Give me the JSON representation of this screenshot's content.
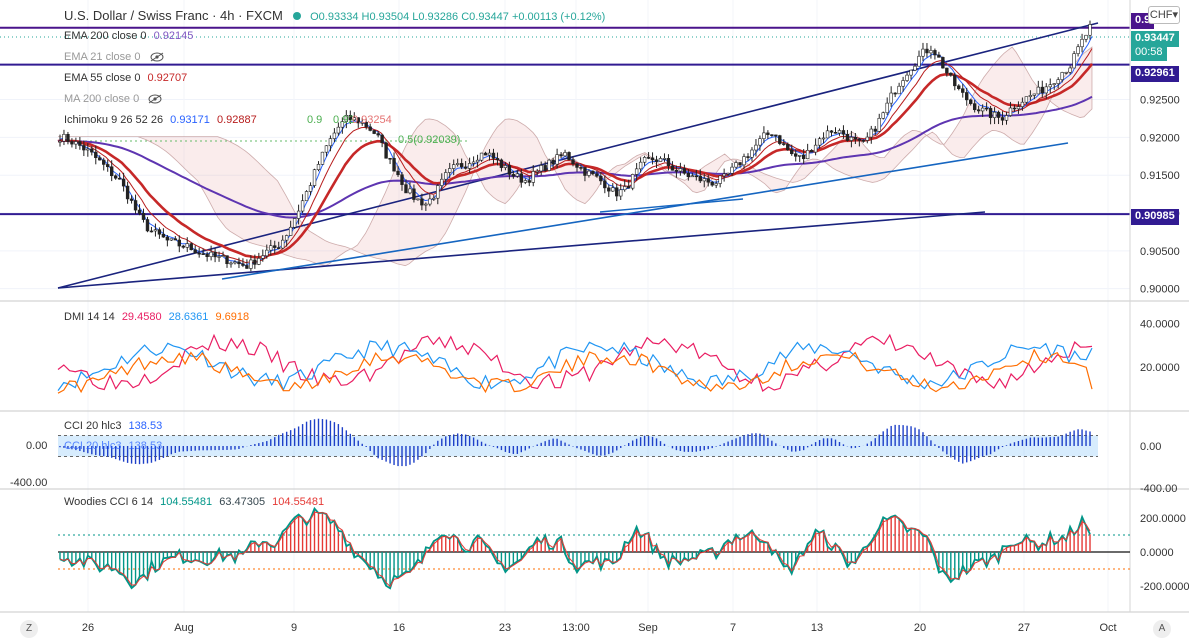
{
  "header": {
    "symbol": "U.S. Dollar / Swiss Franc · 4h · FXCM",
    "ohlc": "O0.93334 H0.93504 L0.93286 C0.93447 +0.00113 (+0.12%)",
    "ohlc_color": "#26a69a",
    "currency_button": "CHF",
    "currency_caret": "▾"
  },
  "indicators": [
    {
      "name": "EMA 200 close 0",
      "value": "0.92145",
      "color": "#7e57c2",
      "hidden": false
    },
    {
      "name": "EMA 21 close 0",
      "value": "",
      "color": "#999999",
      "hidden": true
    },
    {
      "name": "EMA 55 close 0",
      "value": "0.92707",
      "color": "#c62828",
      "hidden": false
    },
    {
      "name": "MA 200 close 0",
      "value": "",
      "color": "#999999",
      "hidden": true
    }
  ],
  "ichimoku": {
    "name": "Ichimoku 9 26 52 26",
    "v1": "0.93171",
    "v2": "0.92887",
    "c1": "#2962ff",
    "c2": "#b71c1c"
  },
  "fib_labels": {
    "a": "0.5(0.92039)",
    "b": "0.9",
    "c": "0.92",
    "d": "0.93254"
  },
  "price_axis": {
    "ticks": [
      "0.92500",
      "0.92000",
      "0.91500",
      "0.91000",
      "0.90500",
      "0.90000"
    ],
    "tag_top": "0.9",
    "tag_last": "0.93447",
    "countdown": "00:58",
    "tag_res": "0.92961",
    "tag_sup": "0.90985"
  },
  "dmi": {
    "name": "DMI 14 14",
    "plus": "29.4580",
    "minus": "28.6361",
    "adx": "9.6918",
    "c_plus": "#e91e63",
    "c_minus": "#2196f3",
    "c_adx": "#ff6d00",
    "ticks": [
      "40.0000",
      "20.0000"
    ]
  },
  "cci": {
    "name": "CCI 20 hlc3",
    "value": "138.53",
    "ticks": [
      "0.00",
      "-400.00"
    ],
    "axis_ticks": [
      "0.00",
      "-400.00"
    ]
  },
  "woodies": {
    "name": "Woodies CCI 6 14",
    "v1": "104.55481",
    "v2": "63.47305",
    "v3": "104.55481",
    "c1": "#009688",
    "c2": "#37474f",
    "c3": "#e53935",
    "ticks": [
      "200.0000",
      "0.0000",
      "-200.0000"
    ]
  },
  "time_axis": [
    "26",
    "Aug",
    "9",
    "16",
    "23",
    "13:00",
    "Sep",
    "7",
    "13",
    "20",
    "27",
    "Oct"
  ],
  "corners": {
    "left": "Z",
    "right": "A"
  },
  "chart_data": {
    "type": "candlestick",
    "title": "U.S. Dollar / Swiss Franc · 4h · FXCM",
    "x_labels": [
      "26",
      "Aug",
      "9",
      "16",
      "23",
      "13:00",
      "Sep",
      "7",
      "13",
      "20",
      "27",
      "Oct"
    ],
    "ylim": [
      0.8985,
      0.9375
    ],
    "close_path": [
      0.9201,
      0.9196,
      0.9189,
      0.918,
      0.9168,
      0.9155,
      0.9143,
      0.912,
      0.9095,
      0.9078,
      0.907,
      0.9062,
      0.9058,
      0.9055,
      0.9049,
      0.9044,
      0.904,
      0.9038,
      0.9033,
      0.903,
      0.9041,
      0.905,
      0.9056,
      0.9075,
      0.9102,
      0.913,
      0.9162,
      0.919,
      0.9212,
      0.9225,
      0.9223,
      0.9215,
      0.9203,
      0.9175,
      0.9155,
      0.913,
      0.9118,
      0.9112,
      0.9128,
      0.915,
      0.9162,
      0.9165,
      0.9175,
      0.918,
      0.917,
      0.9158,
      0.9148,
      0.9143,
      0.9152,
      0.9162,
      0.917,
      0.9178,
      0.9166,
      0.9155,
      0.9148,
      0.9139,
      0.9126,
      0.913,
      0.915,
      0.9168,
      0.9172,
      0.9168,
      0.9158,
      0.9152,
      0.9147,
      0.9143,
      0.914,
      0.9145,
      0.9158,
      0.9172,
      0.9185,
      0.92,
      0.9208,
      0.919,
      0.9176,
      0.9172,
      0.9188,
      0.9202,
      0.921,
      0.9206,
      0.9196,
      0.9189,
      0.9207,
      0.9228,
      0.9256,
      0.9278,
      0.9295,
      0.931,
      0.932,
      0.9298,
      0.9275,
      0.9258,
      0.9245,
      0.9236,
      0.923,
      0.9225,
      0.9238,
      0.9248,
      0.9255,
      0.9262,
      0.9272,
      0.9285,
      0.9295,
      0.9322,
      0.9345
    ],
    "lines": [
      {
        "name": "EMA 200 close 0",
        "last": 0.92145
      },
      {
        "name": "EMA 55 close 0",
        "last": 0.92707
      }
    ],
    "horizontal_levels": [
      0.9345,
      0.92961,
      0.90985
    ],
    "last_price": 0.93447,
    "dmi": {
      "plus_last": 29.458,
      "minus_last": 28.6361,
      "adx_last": 9.6918,
      "ylim": [
        0,
        50
      ]
    },
    "cci_last": 138.53,
    "woodies_last": 104.55481
  }
}
